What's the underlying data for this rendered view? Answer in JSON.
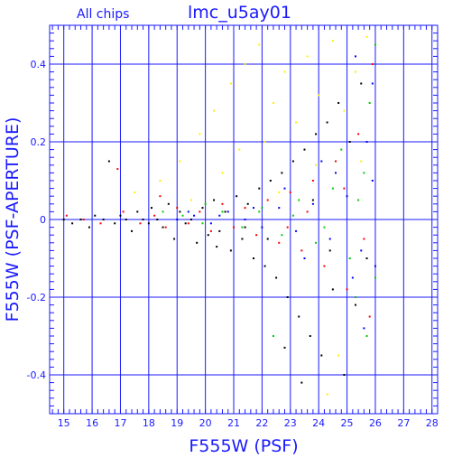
{
  "chart_data": {
    "type": "scatter",
    "title": "lmc_u5ay01",
    "subtitle": "All chips",
    "xlabel": "F555W (PSF)",
    "ylabel": "F555W (PSF-APERTURE)",
    "xlim": [
      14.5,
      28.2
    ],
    "ylim": [
      -0.5,
      0.5
    ],
    "x_ticks": [
      15,
      16,
      17,
      18,
      19,
      20,
      21,
      22,
      23,
      24,
      25,
      26,
      27,
      28
    ],
    "y_ticks": [
      -0.4,
      -0.2,
      0,
      0.2,
      0.4
    ],
    "y_tick_labels": [
      "-0.4",
      "-0.2",
      "0",
      "0.2",
      "0.4"
    ],
    "grid": true,
    "colors": {
      "axes": "#1a1aff",
      "black": "#000000",
      "red": "#ff0000",
      "green": "#00cc00",
      "blue": "#0000ff",
      "yellow": "#ffee00"
    },
    "series": [
      {
        "color": "#000000",
        "points": [
          [
            15.0,
            0.0
          ],
          [
            15.3,
            -0.01
          ],
          [
            15.6,
            0.0
          ],
          [
            15.9,
            -0.02
          ],
          [
            16.1,
            0.01
          ],
          [
            16.4,
            0.0
          ],
          [
            16.6,
            0.15
          ],
          [
            16.8,
            -0.01
          ],
          [
            17.0,
            0.01
          ],
          [
            17.2,
            0.0
          ],
          [
            17.4,
            -0.03
          ],
          [
            17.6,
            0.02
          ],
          [
            17.8,
            0.0
          ],
          [
            18.0,
            -0.01
          ],
          [
            18.1,
            0.03
          ],
          [
            18.3,
            0.0
          ],
          [
            18.5,
            -0.02
          ],
          [
            18.7,
            0.04
          ],
          [
            18.9,
            -0.05
          ],
          [
            19.1,
            0.02
          ],
          [
            19.3,
            -0.01
          ],
          [
            19.5,
            0.0
          ],
          [
            19.7,
            -0.06
          ],
          [
            19.9,
            0.03
          ],
          [
            20.1,
            -0.04
          ],
          [
            20.3,
            0.05
          ],
          [
            20.5,
            -0.03
          ],
          [
            20.7,
            0.02
          ],
          [
            20.9,
            -0.08
          ],
          [
            21.1,
            0.06
          ],
          [
            21.3,
            -0.05
          ],
          [
            21.5,
            0.04
          ],
          [
            21.7,
            -0.1
          ],
          [
            21.9,
            0.08
          ],
          [
            22.1,
            -0.12
          ],
          [
            22.3,
            0.1
          ],
          [
            22.5,
            -0.15
          ],
          [
            22.7,
            0.12
          ],
          [
            22.9,
            -0.2
          ],
          [
            23.1,
            0.15
          ],
          [
            23.3,
            -0.25
          ],
          [
            23.5,
            0.18
          ],
          [
            23.7,
            -0.3
          ],
          [
            23.9,
            0.22
          ],
          [
            24.1,
            -0.35
          ],
          [
            24.3,
            0.25
          ],
          [
            24.5,
            -0.18
          ],
          [
            24.7,
            0.3
          ],
          [
            24.9,
            -0.4
          ],
          [
            25.1,
            0.2
          ],
          [
            25.3,
            -0.22
          ],
          [
            25.5,
            0.35
          ],
          [
            25.7,
            -0.1
          ],
          [
            22.8,
            -0.33
          ],
          [
            23.4,
            -0.42
          ],
          [
            22.2,
            -0.05
          ],
          [
            21.4,
            -0.02
          ],
          [
            23.8,
            0.05
          ],
          [
            24.4,
            -0.08
          ],
          [
            20.4,
            -0.07
          ]
        ]
      },
      {
        "color": "#ff0000",
        "points": [
          [
            15.1,
            0.01
          ],
          [
            15.7,
            0.0
          ],
          [
            16.3,
            -0.01
          ],
          [
            17.1,
            0.02
          ],
          [
            17.7,
            -0.01
          ],
          [
            18.2,
            0.01
          ],
          [
            18.6,
            -0.02
          ],
          [
            19.0,
            0.03
          ],
          [
            19.4,
            -0.01
          ],
          [
            19.8,
            0.02
          ],
          [
            20.2,
            -0.03
          ],
          [
            20.6,
            0.04
          ],
          [
            21.0,
            -0.02
          ],
          [
            21.4,
            0.03
          ],
          [
            21.8,
            -0.04
          ],
          [
            22.2,
            0.05
          ],
          [
            22.6,
            -0.06
          ],
          [
            23.0,
            0.07
          ],
          [
            23.4,
            -0.08
          ],
          [
            23.8,
            0.1
          ],
          [
            24.2,
            -0.12
          ],
          [
            24.6,
            0.15
          ],
          [
            25.0,
            -0.18
          ],
          [
            25.4,
            0.22
          ],
          [
            25.8,
            -0.25
          ],
          [
            25.9,
            0.4
          ],
          [
            25.6,
            -0.05
          ],
          [
            24.9,
            0.08
          ],
          [
            23.6,
            0.02
          ],
          [
            22.9,
            -0.02
          ],
          [
            16.9,
            0.13
          ],
          [
            18.4,
            0.06
          ]
        ]
      },
      {
        "color": "#00cc00",
        "points": [
          [
            18.5,
            0.02
          ],
          [
            19.2,
            0.01
          ],
          [
            19.9,
            -0.01
          ],
          [
            20.6,
            0.02
          ],
          [
            21.3,
            -0.02
          ],
          [
            22.0,
            0.03
          ],
          [
            22.7,
            -0.04
          ],
          [
            23.3,
            0.05
          ],
          [
            23.9,
            -0.06
          ],
          [
            24.5,
            0.08
          ],
          [
            25.1,
            -0.1
          ],
          [
            25.6,
            0.12
          ],
          [
            26.0,
            -0.15
          ],
          [
            25.8,
            0.3
          ],
          [
            25.3,
            -0.2
          ],
          [
            24.8,
            0.18
          ],
          [
            26.0,
            0.45
          ],
          [
            25.7,
            -0.3
          ],
          [
            24.2,
            -0.02
          ],
          [
            23.1,
            0.01
          ],
          [
            20.0,
            0.04
          ],
          [
            21.9,
            0.02
          ],
          [
            25.4,
            0.05
          ],
          [
            22.4,
            -0.3
          ]
        ]
      },
      {
        "color": "#0000ff",
        "points": [
          [
            19.0,
            0.0
          ],
          [
            19.6,
            0.01
          ],
          [
            20.2,
            -0.01
          ],
          [
            20.8,
            0.02
          ],
          [
            21.4,
            0.0
          ],
          [
            22.0,
            -0.02
          ],
          [
            22.6,
            0.03
          ],
          [
            23.2,
            -0.03
          ],
          [
            23.8,
            0.04
          ],
          [
            24.4,
            -0.05
          ],
          [
            25.0,
            0.06
          ],
          [
            25.5,
            -0.08
          ],
          [
            25.9,
            0.1
          ],
          [
            26.0,
            -0.12
          ],
          [
            25.7,
            0.2
          ],
          [
            25.2,
            -0.15
          ],
          [
            24.6,
            0.12
          ],
          [
            25.9,
            0.35
          ],
          [
            25.3,
            0.42
          ],
          [
            24.1,
            0.15
          ],
          [
            23.5,
            -0.1
          ],
          [
            22.8,
            0.08
          ],
          [
            21.7,
            0.03
          ],
          [
            25.6,
            -0.28
          ],
          [
            20.5,
            0.01
          ],
          [
            19.4,
            0.02
          ]
        ]
      },
      {
        "color": "#ffee00",
        "points": [
          [
            17.5,
            0.07
          ],
          [
            18.4,
            0.1
          ],
          [
            19.1,
            0.15
          ],
          [
            19.8,
            0.22
          ],
          [
            20.3,
            0.28
          ],
          [
            20.9,
            0.35
          ],
          [
            21.4,
            0.4
          ],
          [
            21.9,
            0.45
          ],
          [
            22.4,
            0.3
          ],
          [
            22.8,
            0.38
          ],
          [
            23.2,
            0.25
          ],
          [
            23.6,
            0.42
          ],
          [
            24.0,
            0.32
          ],
          [
            24.5,
            0.46
          ],
          [
            24.9,
            0.28
          ],
          [
            25.3,
            0.38
          ],
          [
            25.7,
            0.47
          ],
          [
            20.6,
            0.12
          ],
          [
            21.2,
            0.18
          ],
          [
            22.1,
            0.2
          ],
          [
            23.9,
            0.14
          ],
          [
            24.7,
            -0.35
          ],
          [
            24.3,
            -0.45
          ],
          [
            22.6,
            0.07
          ],
          [
            19.5,
            0.05
          ],
          [
            25.5,
            0.15
          ]
        ]
      }
    ]
  }
}
